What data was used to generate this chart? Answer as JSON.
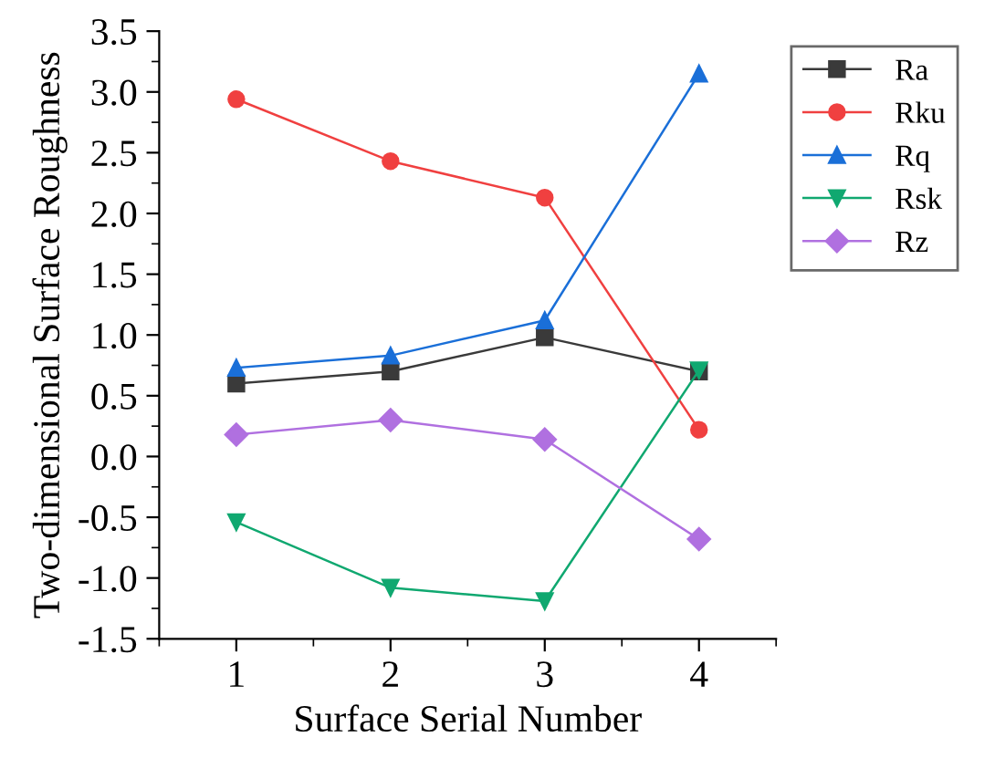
{
  "chart_data": {
    "type": "line",
    "xlabel": "Surface Serial Number",
    "ylabel": "Two-dimensional Surface Roughness",
    "x": [
      1,
      2,
      3,
      4
    ],
    "xlim": [
      0.5,
      4.5
    ],
    "xticks": [
      1,
      2,
      3,
      4
    ],
    "ylim": [
      -1.5,
      3.5
    ],
    "yticks": [
      {
        "value": -1.5,
        "label": "-1.5"
      },
      {
        "value": -1.0,
        "label": "-1.0"
      },
      {
        "value": -0.5,
        "label": "-0.5"
      },
      {
        "value": 0.0,
        "label": "0.0"
      },
      {
        "value": 0.5,
        "label": "0.5"
      },
      {
        "value": 1.0,
        "label": "1.0"
      },
      {
        "value": 1.5,
        "label": "1.5"
      },
      {
        "value": 2.0,
        "label": "2.0"
      },
      {
        "value": 2.5,
        "label": "2.5"
      },
      {
        "value": 3.0,
        "label": "3.0"
      },
      {
        "value": 3.5,
        "label": "3.5"
      }
    ],
    "grid": false,
    "legend": "top right",
    "series": [
      {
        "name": "Ra",
        "color": "#3a3a3a",
        "marker": "square",
        "values": [
          0.6,
          0.7,
          0.98,
          0.7
        ]
      },
      {
        "name": "Rku",
        "color": "#f04040",
        "marker": "circle",
        "values": [
          2.94,
          2.43,
          2.13,
          0.22
        ]
      },
      {
        "name": "Rq",
        "color": "#1a6fd8",
        "marker": "triangle",
        "values": [
          0.73,
          0.83,
          1.12,
          3.15
        ]
      },
      {
        "name": "Rsk",
        "color": "#10a870",
        "marker": "triangle_down",
        "values": [
          -0.54,
          -1.08,
          -1.19,
          0.71
        ]
      },
      {
        "name": "Rz",
        "color": "#b070e0",
        "marker": "diamond",
        "values": [
          0.18,
          0.3,
          0.14,
          -0.68
        ]
      }
    ]
  }
}
